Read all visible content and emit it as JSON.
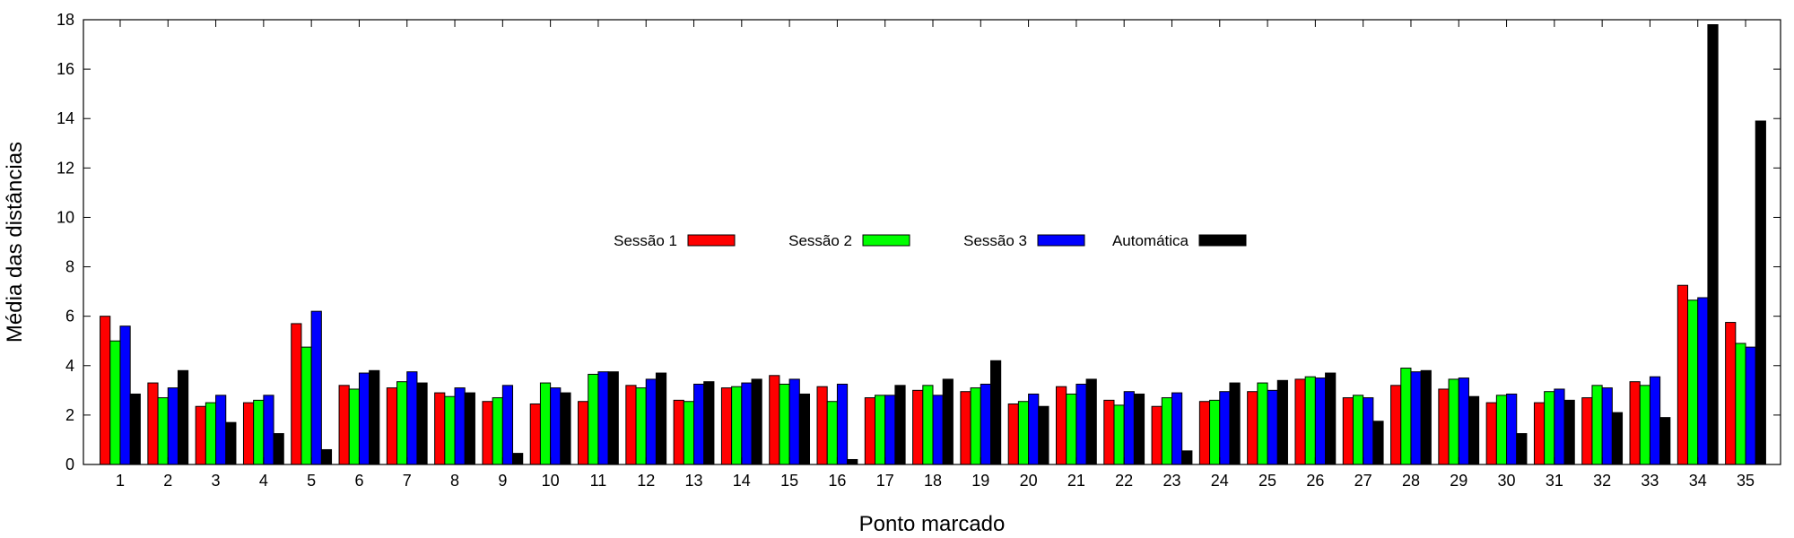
{
  "chart_data": {
    "type": "bar",
    "xlabel": "Ponto marcado",
    "ylabel": "Média das distâncias",
    "ylim": [
      0,
      18
    ],
    "yticks": [
      0,
      2,
      4,
      6,
      8,
      10,
      12,
      14,
      16,
      18
    ],
    "categories": [
      "1",
      "2",
      "3",
      "4",
      "5",
      "6",
      "7",
      "8",
      "9",
      "10",
      "11",
      "12",
      "13",
      "14",
      "15",
      "16",
      "17",
      "18",
      "19",
      "20",
      "21",
      "22",
      "23",
      "24",
      "25",
      "26",
      "27",
      "28",
      "29",
      "30",
      "31",
      "32",
      "33",
      "34",
      "35"
    ],
    "grid": false,
    "legend_position": "center",
    "series": [
      {
        "name": "Sessão 1",
        "color": "#ff0000",
        "values": [
          6.0,
          3.3,
          2.35,
          2.5,
          5.7,
          3.2,
          3.1,
          2.9,
          2.55,
          2.45,
          2.55,
          3.2,
          2.6,
          3.1,
          3.6,
          3.15,
          2.7,
          3.0,
          2.95,
          2.45,
          3.15,
          2.6,
          2.35,
          2.55,
          2.95,
          3.45,
          2.7,
          3.2,
          3.05,
          2.5,
          2.5,
          2.7,
          3.35,
          7.25,
          5.75
        ]
      },
      {
        "name": "Sessão 2",
        "color": "#00ff00",
        "values": [
          5.0,
          2.7,
          2.5,
          2.6,
          4.75,
          3.05,
          3.35,
          2.75,
          2.7,
          3.3,
          3.65,
          3.1,
          2.55,
          3.15,
          3.25,
          2.55,
          2.8,
          3.2,
          3.1,
          2.55,
          2.85,
          2.4,
          2.7,
          2.6,
          3.3,
          3.55,
          2.8,
          3.9,
          3.45,
          2.8,
          2.95,
          3.2,
          3.2,
          6.65,
          4.9
        ]
      },
      {
        "name": "Sessão 3",
        "color": "#0000ff",
        "values": [
          5.6,
          3.1,
          2.8,
          2.8,
          6.2,
          3.7,
          3.75,
          3.1,
          3.2,
          3.1,
          3.75,
          3.45,
          3.25,
          3.3,
          3.45,
          3.25,
          2.8,
          2.8,
          3.25,
          2.85,
          3.25,
          2.95,
          2.9,
          2.95,
          3.0,
          3.5,
          2.7,
          3.75,
          3.5,
          2.85,
          3.05,
          3.1,
          3.55,
          6.75,
          4.75
        ]
      },
      {
        "name": "Automática",
        "color": "#000000",
        "values": [
          2.85,
          3.8,
          1.7,
          1.25,
          0.6,
          3.8,
          3.3,
          2.9,
          0.45,
          2.9,
          3.75,
          3.7,
          3.35,
          3.45,
          2.85,
          0.2,
          3.2,
          3.45,
          4.2,
          2.35,
          3.45,
          2.85,
          0.55,
          3.3,
          3.4,
          3.7,
          1.75,
          3.8,
          2.75,
          1.25,
          2.6,
          2.1,
          1.9,
          17.8,
          13.9
        ]
      }
    ]
  }
}
